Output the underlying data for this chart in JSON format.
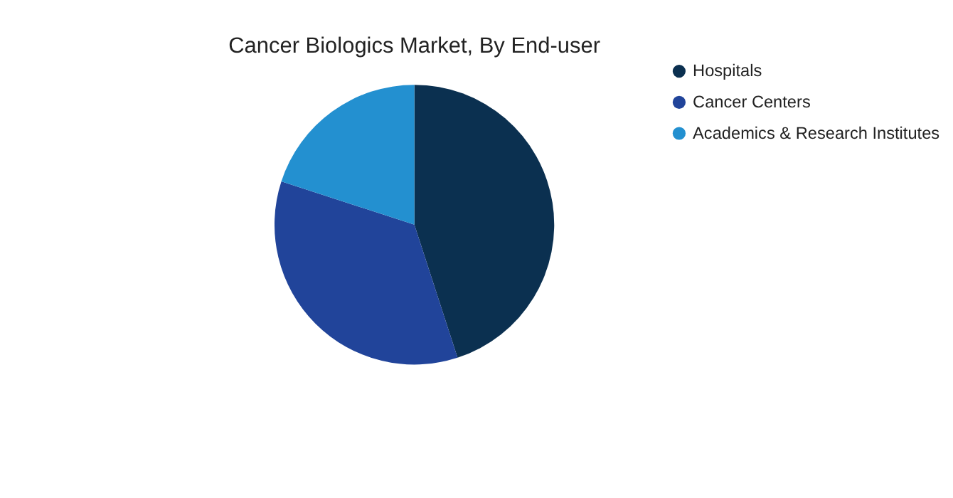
{
  "chart_data": {
    "type": "pie",
    "title": "Cancer Biologics Market, By End-user",
    "categories": [
      "Hospitals",
      "Cancer Centers",
      "Academics & Research Institutes"
    ],
    "values": [
      45,
      35,
      20
    ],
    "colors": [
      "#0b3050",
      "#21449a",
      "#2390d0"
    ],
    "legend": "right"
  }
}
